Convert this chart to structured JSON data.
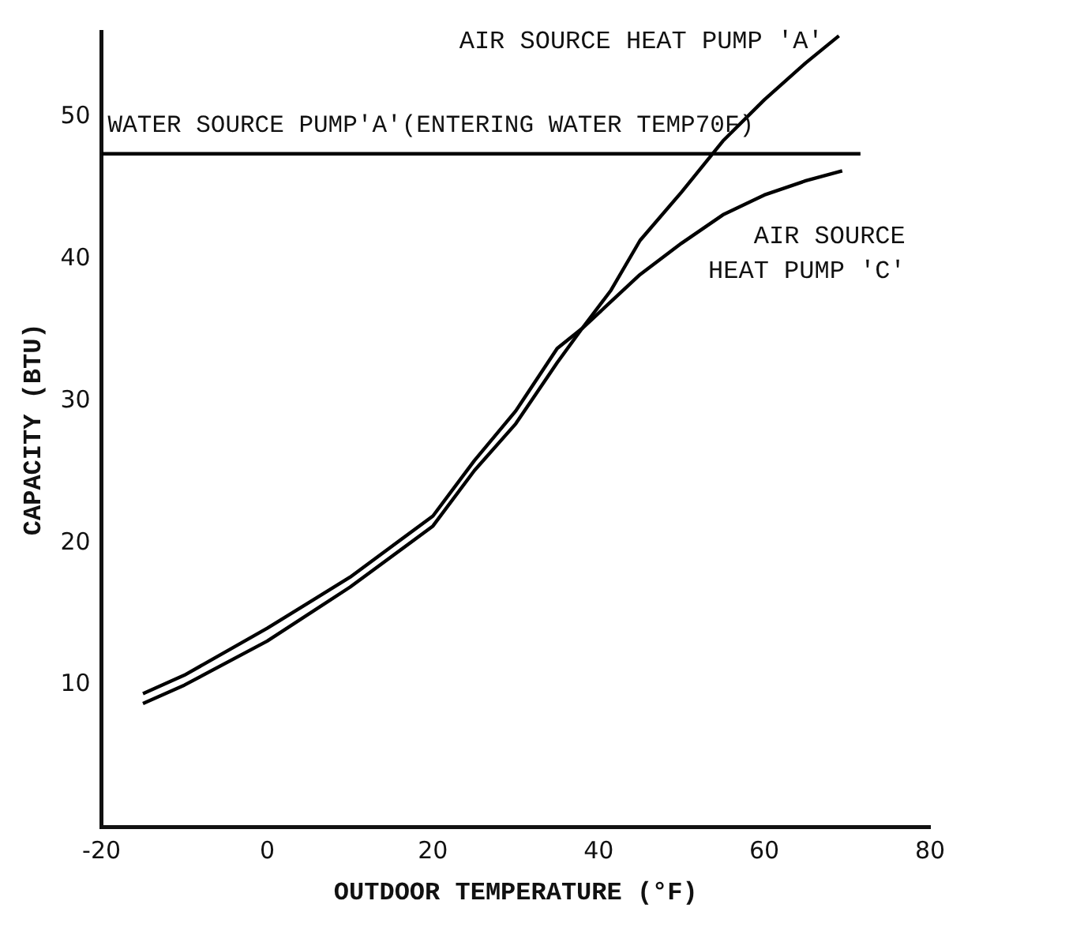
{
  "chart_data": {
    "type": "line",
    "xlabel": "OUTDOOR TEMPERATURE (°F)",
    "ylabel": "CAPACITY (BTU)",
    "xlim": [
      -20,
      80
    ],
    "ylim": [
      0,
      56
    ],
    "xticks": [
      -20,
      0,
      20,
      40,
      60,
      80
    ],
    "yticks": [
      10,
      20,
      30,
      40,
      50
    ],
    "marker": "none",
    "series": [
      {
        "name": "AIR SOURCE HEAT PUMP 'A'",
        "color": "#000000",
        "x": [
          -15,
          -10,
          0,
          10,
          20,
          25,
          30,
          35,
          38,
          41.5,
          45,
          50,
          55,
          60,
          65,
          69
        ],
        "values": [
          9.4,
          10.7,
          14.0,
          17.6,
          21.9,
          25.8,
          29.3,
          33.7,
          35.1,
          37.8,
          41.3,
          44.7,
          48.3,
          51.2,
          53.8,
          55.7
        ]
      },
      {
        "name": "AIR SOURCE HEAT PUMP 'C'",
        "color": "#000000",
        "x": [
          -15,
          -10,
          0,
          10,
          20,
          25,
          30,
          35,
          38,
          45,
          50,
          55,
          60,
          65,
          69.4
        ],
        "values": [
          8.7,
          10.0,
          13.1,
          16.9,
          21.2,
          25.1,
          28.4,
          32.7,
          35.1,
          38.9,
          41.1,
          43.1,
          44.5,
          45.5,
          46.2
        ]
      },
      {
        "name": "WATER SOURCE PUMP'A'(ENTERING WATER TEMP70F)",
        "color": "#000000",
        "x": [
          -20,
          71.6
        ],
        "values": [
          47.4,
          47.4
        ]
      }
    ]
  }
}
